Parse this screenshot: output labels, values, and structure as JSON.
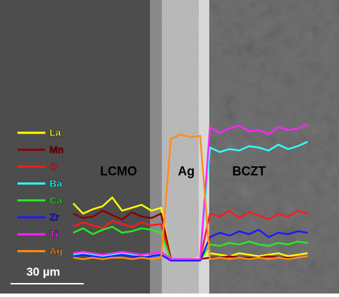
{
  "chart_data": {
    "type": "line",
    "x": [
      0,
      4,
      8,
      12,
      16,
      20,
      24,
      28,
      32,
      36,
      40,
      44,
      48,
      52,
      56,
      60,
      64,
      68,
      72,
      76,
      80,
      84,
      88,
      92,
      96
    ],
    "xlim": [
      0,
      96
    ],
    "ylim": [
      0,
      100
    ],
    "series": [
      {
        "name": "La",
        "color": "#ffff00",
        "values": [
          40,
          33,
          36,
          38,
          44,
          35,
          37,
          39,
          35,
          37,
          2,
          1,
          2,
          3,
          6,
          5,
          4,
          6,
          5,
          4,
          5,
          6,
          4,
          5,
          6
        ]
      },
      {
        "name": "Mn",
        "color": "#8b0000",
        "values": [
          33,
          30,
          31,
          35,
          32,
          29,
          34,
          31,
          30,
          33,
          2,
          2,
          2,
          2,
          3,
          3,
          4,
          3,
          3,
          3,
          4,
          3,
          3,
          3,
          4
        ]
      },
      {
        "name": "O",
        "color": "#ff1a1a",
        "values": [
          24,
          27,
          25,
          23,
          28,
          26,
          24,
          27,
          25,
          26,
          1,
          2,
          1,
          2,
          33,
          31,
          35,
          30,
          34,
          32,
          29,
          33,
          31,
          35,
          33
        ]
      },
      {
        "name": "Ba",
        "color": "#33ffff",
        "values": [
          5,
          6,
          5,
          4,
          5,
          6,
          5,
          5,
          4,
          5,
          2,
          2,
          1,
          2,
          78,
          75,
          77,
          76,
          79,
          78,
          76,
          80,
          77,
          79,
          82
        ]
      },
      {
        "name": "Ca",
        "color": "#22ee22",
        "values": [
          20,
          23,
          19,
          22,
          24,
          20,
          21,
          23,
          22,
          20,
          1,
          1,
          2,
          1,
          12,
          11,
          13,
          12,
          14,
          12,
          11,
          13,
          12,
          14,
          13
        ]
      },
      {
        "name": "Zr",
        "color": "#1a1aff",
        "values": [
          4,
          5,
          4,
          3,
          4,
          5,
          4,
          3,
          4,
          5,
          1,
          1,
          1,
          1,
          17,
          20,
          18,
          21,
          19,
          22,
          17,
          20,
          19,
          21,
          20
        ]
      },
      {
        "name": "Ti",
        "color": "#ff22ff",
        "values": [
          6,
          7,
          6,
          5,
          6,
          7,
          6,
          5,
          6,
          7,
          2,
          2,
          2,
          2,
          92,
          88,
          91,
          93,
          89,
          90,
          87,
          92,
          90,
          91,
          94
        ]
      },
      {
        "name": "Ag",
        "color": "#ff8c1a",
        "values": [
          3,
          2,
          3,
          2,
          3,
          3,
          2,
          3,
          2,
          3,
          84,
          87,
          85,
          86,
          2,
          3,
          2,
          3,
          2,
          3,
          2,
          3,
          2,
          3,
          4
        ]
      }
    ],
    "annotations": [
      "LCMO",
      "Ag",
      "BCZT"
    ],
    "scale_bar": "30 µm"
  }
}
